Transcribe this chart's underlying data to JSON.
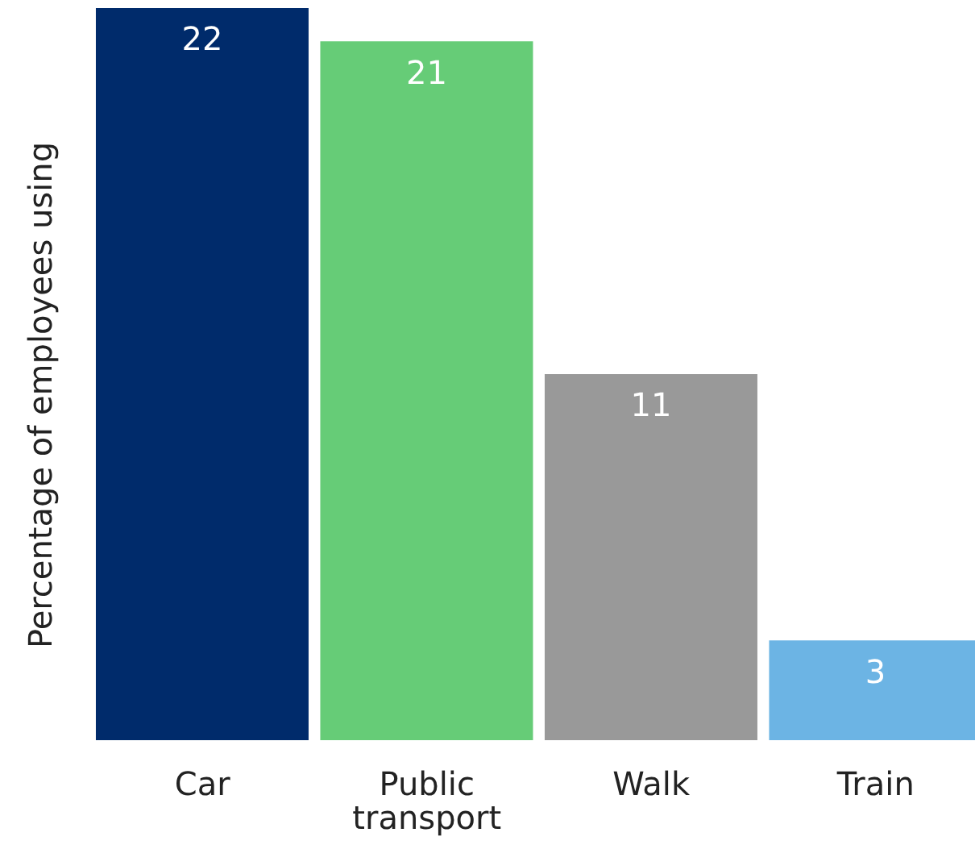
{
  "chart_data": {
    "type": "bar",
    "ylabel": "Percentage of employees using",
    "categories": [
      "Car",
      "Public transport",
      "Walk",
      "Train"
    ],
    "values": [
      22,
      21,
      11,
      3
    ],
    "colors": [
      "#002b6b",
      "#66cc77",
      "#999999",
      "#6cb4e4"
    ],
    "data_labels": true,
    "grid": false,
    "legend": false
  }
}
